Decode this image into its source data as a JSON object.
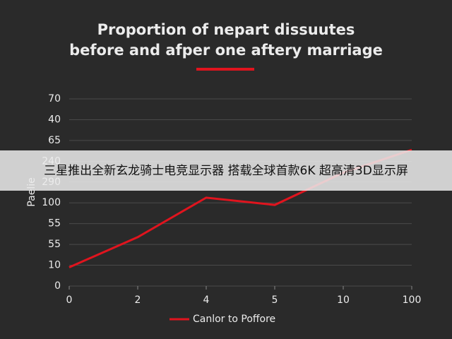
{
  "chart_data": {
    "type": "line",
    "title": [
      "Proportion of nepart dissuutes",
      "before and afper one aftery marriage"
    ],
    "y_label": "Paelie",
    "categories": [
      "0",
      "2",
      "4",
      "5",
      "10",
      "100"
    ],
    "series": [
      {
        "name": "Canlor to Poffore",
        "color": "#e0141e",
        "values": [
          0.9,
          2.35,
          4.25,
          3.9,
          5.45,
          6.55
        ]
      }
    ],
    "ylim": [
      0,
      9
    ],
    "yticks": [
      0,
      {
        "value": 1,
        "label": "10"
      },
      {
        "value": 2,
        "label": "55"
      },
      {
        "value": 3,
        "label": "55"
      },
      {
        "value": 4,
        "label": "100"
      },
      {
        "value": 5,
        "label": "290"
      },
      {
        "value": 6,
        "label": "240"
      },
      {
        "value": 7,
        "label": "65"
      },
      {
        "value": 8,
        "label": "40"
      },
      {
        "value": 9,
        "label": "70"
      }
    ],
    "grid": true
  },
  "overlay_caption": "三星推出全新玄龙骑士电竞显示器 搭载全球首款6K 超高清3D显示屏"
}
